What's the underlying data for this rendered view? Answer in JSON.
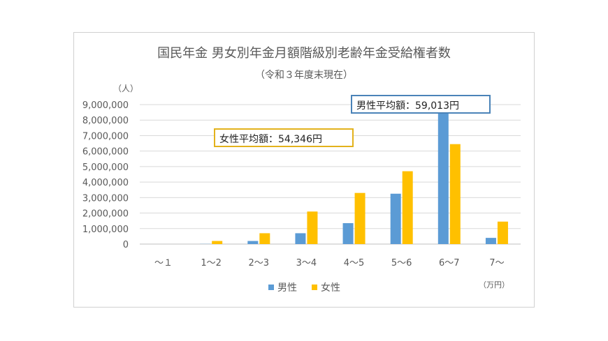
{
  "colors": {
    "male": "#5b9bd5",
    "female": "#ffc000",
    "male_callout_border": "#4a83b8",
    "female_callout_border": "#e3b21c",
    "grid": "#d9d9d9",
    "text": "#595959"
  },
  "callouts": {
    "male": "男性平均額：59,013円",
    "female": "女性平均額：54,346円"
  },
  "chart_data": {
    "type": "bar",
    "title": "国民年金 男女別年金月額階級別老齢年金受給権者数",
    "subtitle": "（令和３年度末現在）",
    "ylabel": "（人）",
    "xlabel": "（万円）",
    "categories": [
      "～１",
      "1～2",
      "2～3",
      "3～4",
      "4～5",
      "5～6",
      "6～7",
      "7～"
    ],
    "ylim": [
      0,
      9000000
    ],
    "yticks": [
      0,
      1000000,
      2000000,
      3000000,
      4000000,
      5000000,
      6000000,
      7000000,
      8000000,
      9000000
    ],
    "ytick_labels": [
      "0",
      "1,000,000",
      "2,000,000",
      "3,000,000",
      "4,000,000",
      "5,000,000",
      "6,000,000",
      "7,000,000",
      "8,000,000",
      "9,000,000"
    ],
    "grid": true,
    "legend": "bottom",
    "series": [
      {
        "name": "男性",
        "color": "#5b9bd5",
        "values": [
          0,
          10000,
          200000,
          700000,
          1350000,
          3250000,
          8600000,
          400000
        ]
      },
      {
        "name": "女性",
        "color": "#ffc000",
        "values": [
          0,
          200000,
          700000,
          2100000,
          3300000,
          4700000,
          6450000,
          1450000
        ]
      }
    ]
  }
}
